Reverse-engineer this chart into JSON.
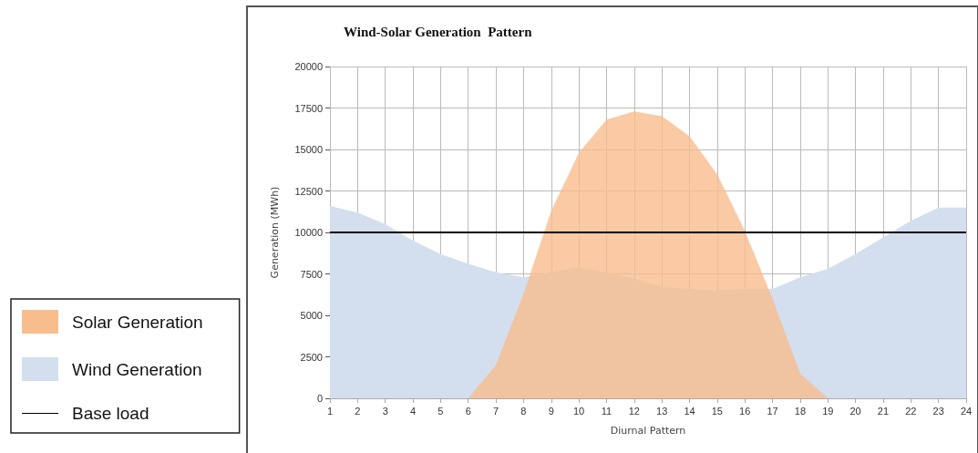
{
  "chart_data": {
    "type": "area",
    "title": "Wind-Solar Generation  Pattern",
    "xlabel": "Diurnal Pattern",
    "ylabel": "Generation (MWh)",
    "x": [
      1,
      2,
      3,
      4,
      5,
      6,
      7,
      8,
      9,
      10,
      11,
      12,
      13,
      14,
      15,
      16,
      17,
      18,
      19,
      20,
      21,
      22,
      23,
      24
    ],
    "xlim": [
      1,
      24
    ],
    "xticks": [
      1,
      2,
      3,
      4,
      5,
      6,
      7,
      8,
      9,
      10,
      11,
      12,
      13,
      14,
      15,
      16,
      17,
      18,
      19,
      20,
      21,
      22,
      23,
      24
    ],
    "ylim": [
      0,
      20000
    ],
    "yticks": [
      0,
      2500,
      5000,
      7500,
      10000,
      12500,
      15000,
      17500,
      20000
    ],
    "grid": true,
    "legend": "left",
    "series": [
      {
        "name": "Wind Generation",
        "color": "#d3dfee",
        "values": [
          11600,
          11200,
          10500,
          9500,
          8700,
          8100,
          7600,
          7300,
          7600,
          7900,
          7600,
          7200,
          6700,
          6600,
          6500,
          6600,
          6600,
          7300,
          7800,
          8700,
          9700,
          10700,
          11500,
          11500
        ]
      },
      {
        "name": "Solar Generation",
        "color": "#f8bd8d",
        "values": [
          null,
          null,
          null,
          null,
          null,
          0,
          2000,
          6300,
          11300,
          14800,
          16800,
          17300,
          17000,
          15800,
          13500,
          10100,
          6000,
          1500,
          0,
          null,
          null,
          null,
          null,
          null
        ]
      },
      {
        "name": "Base load",
        "type": "line",
        "color": "#000000",
        "values": [
          10000,
          10000,
          10000,
          10000,
          10000,
          10000,
          10000,
          10000,
          10000,
          10000,
          10000,
          10000,
          10000,
          10000,
          10000,
          10000,
          10000,
          10000,
          10000,
          10000,
          10000,
          10000,
          10000,
          10000
        ]
      }
    ]
  }
}
